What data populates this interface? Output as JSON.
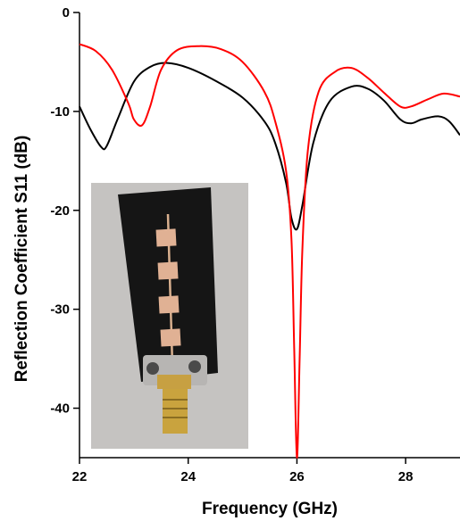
{
  "chart_data": {
    "type": "line",
    "title": "",
    "xlabel": "Frequency (GHz)",
    "ylabel": "Reflection Coefficient S11 (dB)",
    "xlim": [
      22,
      29
    ],
    "ylim": [
      -45,
      0
    ],
    "x_ticks": [
      22,
      24,
      26,
      28
    ],
    "y_ticks": [
      0,
      -10,
      -20,
      -30,
      -40
    ],
    "grid": false,
    "legend": "none",
    "series": [
      {
        "color": "#000000",
        "x": [
          22.0,
          22.2,
          22.4,
          22.5,
          22.7,
          23.0,
          23.3,
          23.6,
          24.0,
          24.5,
          25.0,
          25.4,
          25.6,
          25.8,
          25.9,
          26.0,
          26.1,
          26.3,
          26.6,
          27.0,
          27.3,
          27.6,
          27.9,
          28.1,
          28.3,
          28.6,
          28.8,
          29.0
        ],
        "y": [
          -9.5,
          -11.8,
          -13.6,
          -13.5,
          -10.8,
          -7.0,
          -5.5,
          -5.1,
          -5.6,
          -6.9,
          -8.6,
          -11.0,
          -13.2,
          -17.2,
          -20.8,
          -21.9,
          -19.5,
          -13.2,
          -9.0,
          -7.5,
          -7.7,
          -8.9,
          -10.8,
          -11.2,
          -10.8,
          -10.5,
          -11.0,
          -12.4
        ]
      },
      {
        "color": "#ff0000",
        "x": [
          22.0,
          22.3,
          22.6,
          22.9,
          23.0,
          23.15,
          23.3,
          23.5,
          23.8,
          24.2,
          24.6,
          25.0,
          25.4,
          25.6,
          25.8,
          25.9,
          25.95,
          26.0,
          26.05,
          26.1,
          26.2,
          26.4,
          26.7,
          27.0,
          27.3,
          27.6,
          27.9,
          28.1,
          28.4,
          28.7,
          29.0
        ],
        "y": [
          -3.2,
          -3.9,
          -5.8,
          -9.2,
          -10.8,
          -11.4,
          -9.5,
          -5.8,
          -3.8,
          -3.4,
          -3.7,
          -5.0,
          -8.0,
          -11.0,
          -16.0,
          -23.0,
          -34.0,
          -45.0,
          -35.0,
          -24.0,
          -14.0,
          -8.0,
          -6.0,
          -5.6,
          -6.6,
          -8.1,
          -9.5,
          -9.5,
          -8.8,
          -8.2,
          -8.5
        ]
      }
    ]
  }
}
